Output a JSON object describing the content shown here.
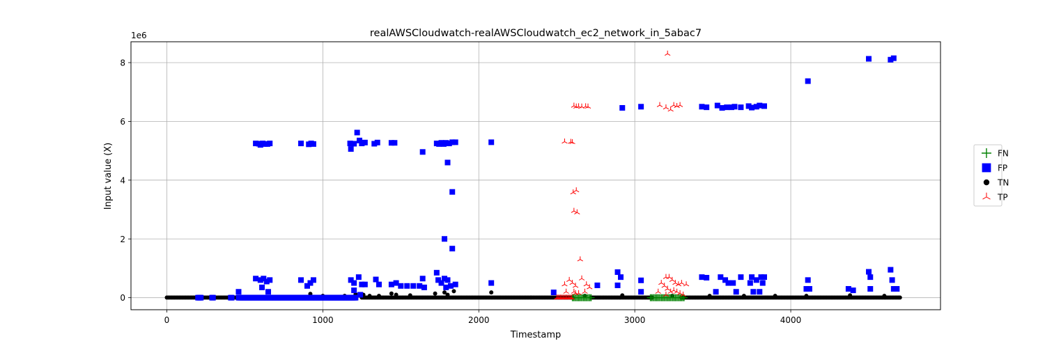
{
  "chart_data": {
    "type": "scatter",
    "title": "realAWSCloudwatch-realAWSCloudwatch_ec2_network_in_5abac7",
    "xlabel": "Timestamp",
    "ylabel": "Input value (X)",
    "y_offset_text": "1e6",
    "xlim": [
      -230,
      4960
    ],
    "ylim": [
      -410000,
      8710000
    ],
    "xticks": [
      0,
      1000,
      2000,
      3000,
      4000
    ],
    "xtick_labels": [
      "0",
      "1000",
      "2000",
      "3000",
      "4000"
    ],
    "yticks": [
      0,
      2000000,
      4000000,
      6000000,
      8000000
    ],
    "ytick_labels": [
      "0",
      "2",
      "4",
      "6",
      "8"
    ],
    "grid": true,
    "legend_position": "right",
    "legend": [
      {
        "label": "FN",
        "marker": "plus",
        "color": "#008000"
      },
      {
        "label": "FP",
        "marker": "square",
        "color": "#0000ff"
      },
      {
        "label": "TN",
        "marker": "circle",
        "color": "#000000"
      },
      {
        "label": "TP",
        "marker": "tri",
        "color": "#ff0000"
      }
    ],
    "series": [
      {
        "name": "TN",
        "marker": "circle",
        "color": "#000000",
        "baseline_ranges": [
          [
            0,
            560
          ],
          [
            740,
            1190
          ],
          [
            1250,
            2600
          ],
          [
            2720,
            3110
          ],
          [
            3300,
            4700
          ]
        ],
        "baseline_value": 5000,
        "points": [
          {
            "x": 920,
            "y": 130000
          },
          {
            "x": 1000,
            "y": 60000
          },
          {
            "x": 1140,
            "y": 60000
          },
          {
            "x": 1210,
            "y": 120000
          },
          {
            "x": 1260,
            "y": 100000
          },
          {
            "x": 1300,
            "y": 60000
          },
          {
            "x": 1360,
            "y": 60000
          },
          {
            "x": 1440,
            "y": 140000
          },
          {
            "x": 1470,
            "y": 100000
          },
          {
            "x": 1560,
            "y": 80000
          },
          {
            "x": 1720,
            "y": 140000
          },
          {
            "x": 1780,
            "y": 180000
          },
          {
            "x": 1800,
            "y": 100000
          },
          {
            "x": 1840,
            "y": 220000
          },
          {
            "x": 2080,
            "y": 180000
          },
          {
            "x": 2680,
            "y": 60000
          },
          {
            "x": 2920,
            "y": 80000
          },
          {
            "x": 3240,
            "y": 60000
          },
          {
            "x": 3480,
            "y": 60000
          },
          {
            "x": 3700,
            "y": 60000
          },
          {
            "x": 3900,
            "y": 60000
          },
          {
            "x": 4100,
            "y": 60000
          },
          {
            "x": 4380,
            "y": 80000
          },
          {
            "x": 4600,
            "y": 60000
          }
        ]
      },
      {
        "name": "FP",
        "marker": "square",
        "color": "#0000ff",
        "baseline_ranges": [
          [
            200,
            220
          ],
          [
            290,
            300
          ],
          [
            410,
            420
          ],
          [
            460,
            1210
          ]
        ],
        "baseline_value": 0,
        "points": [
          {
            "x": 570,
            "y": 5250000
          },
          {
            "x": 590,
            "y": 5240000
          },
          {
            "x": 600,
            "y": 5200000
          },
          {
            "x": 615,
            "y": 5250000
          },
          {
            "x": 630,
            "y": 5230000
          },
          {
            "x": 645,
            "y": 5230000
          },
          {
            "x": 660,
            "y": 5250000
          },
          {
            "x": 860,
            "y": 5250000
          },
          {
            "x": 910,
            "y": 5220000
          },
          {
            "x": 925,
            "y": 5250000
          },
          {
            "x": 940,
            "y": 5230000
          },
          {
            "x": 1175,
            "y": 5250000
          },
          {
            "x": 1180,
            "y": 5060000
          },
          {
            "x": 1200,
            "y": 5240000
          },
          {
            "x": 1220,
            "y": 5620000
          },
          {
            "x": 1235,
            "y": 5350000
          },
          {
            "x": 1250,
            "y": 5250000
          },
          {
            "x": 1270,
            "y": 5280000
          },
          {
            "x": 1330,
            "y": 5240000
          },
          {
            "x": 1350,
            "y": 5280000
          },
          {
            "x": 1440,
            "y": 5270000
          },
          {
            "x": 1460,
            "y": 5270000
          },
          {
            "x": 1640,
            "y": 4960000
          },
          {
            "x": 1730,
            "y": 5250000
          },
          {
            "x": 1745,
            "y": 5230000
          },
          {
            "x": 1760,
            "y": 5270000
          },
          {
            "x": 1775,
            "y": 5230000
          },
          {
            "x": 1790,
            "y": 5270000
          },
          {
            "x": 1810,
            "y": 5250000
          },
          {
            "x": 1830,
            "y": 5290000
          },
          {
            "x": 1850,
            "y": 5290000
          },
          {
            "x": 1800,
            "y": 4600000
          },
          {
            "x": 1830,
            "y": 3600000
          },
          {
            "x": 1780,
            "y": 2000000
          },
          {
            "x": 1830,
            "y": 1670000
          },
          {
            "x": 2080,
            "y": 5290000
          },
          {
            "x": 2920,
            "y": 6460000
          },
          {
            "x": 3040,
            "y": 6500000
          },
          {
            "x": 3430,
            "y": 6500000
          },
          {
            "x": 3460,
            "y": 6480000
          },
          {
            "x": 3530,
            "y": 6540000
          },
          {
            "x": 3560,
            "y": 6460000
          },
          {
            "x": 3590,
            "y": 6480000
          },
          {
            "x": 3620,
            "y": 6480000
          },
          {
            "x": 3640,
            "y": 6500000
          },
          {
            "x": 3680,
            "y": 6480000
          },
          {
            "x": 3730,
            "y": 6520000
          },
          {
            "x": 3750,
            "y": 6470000
          },
          {
            "x": 3780,
            "y": 6500000
          },
          {
            "x": 3800,
            "y": 6540000
          },
          {
            "x": 3830,
            "y": 6520000
          },
          {
            "x": 4110,
            "y": 7370000
          },
          {
            "x": 4500,
            "y": 8130000
          },
          {
            "x": 4640,
            "y": 8100000
          },
          {
            "x": 4660,
            "y": 8150000
          },
          {
            "x": 570,
            "y": 650000
          },
          {
            "x": 600,
            "y": 600000
          },
          {
            "x": 620,
            "y": 650000
          },
          {
            "x": 640,
            "y": 550000
          },
          {
            "x": 660,
            "y": 600000
          },
          {
            "x": 610,
            "y": 350000
          },
          {
            "x": 650,
            "y": 200000
          },
          {
            "x": 860,
            "y": 600000
          },
          {
            "x": 900,
            "y": 400000
          },
          {
            "x": 920,
            "y": 500000
          },
          {
            "x": 940,
            "y": 600000
          },
          {
            "x": 1180,
            "y": 600000
          },
          {
            "x": 1200,
            "y": 500000
          },
          {
            "x": 1230,
            "y": 700000
          },
          {
            "x": 1250,
            "y": 450000
          },
          {
            "x": 1270,
            "y": 450000
          },
          {
            "x": 1340,
            "y": 620000
          },
          {
            "x": 1360,
            "y": 450000
          },
          {
            "x": 1440,
            "y": 450000
          },
          {
            "x": 1470,
            "y": 500000
          },
          {
            "x": 1500,
            "y": 400000
          },
          {
            "x": 1540,
            "y": 400000
          },
          {
            "x": 1580,
            "y": 400000
          },
          {
            "x": 1620,
            "y": 400000
          },
          {
            "x": 1640,
            "y": 650000
          },
          {
            "x": 1730,
            "y": 850000
          },
          {
            "x": 1740,
            "y": 600000
          },
          {
            "x": 1760,
            "y": 500000
          },
          {
            "x": 1780,
            "y": 650000
          },
          {
            "x": 1800,
            "y": 600000
          },
          {
            "x": 1820,
            "y": 400000
          },
          {
            "x": 1850,
            "y": 450000
          },
          {
            "x": 2080,
            "y": 500000
          },
          {
            "x": 1200,
            "y": 250000
          },
          {
            "x": 1240,
            "y": 100000
          },
          {
            "x": 1790,
            "y": 350000
          },
          {
            "x": 1650,
            "y": 350000
          },
          {
            "x": 460,
            "y": 200000
          },
          {
            "x": 2480,
            "y": 180000
          },
          {
            "x": 2760,
            "y": 420000
          },
          {
            "x": 2890,
            "y": 870000
          },
          {
            "x": 2890,
            "y": 420000
          },
          {
            "x": 2910,
            "y": 700000
          },
          {
            "x": 3040,
            "y": 590000
          },
          {
            "x": 3040,
            "y": 200000
          },
          {
            "x": 3430,
            "y": 700000
          },
          {
            "x": 3460,
            "y": 680000
          },
          {
            "x": 3520,
            "y": 200000
          },
          {
            "x": 3550,
            "y": 700000
          },
          {
            "x": 3580,
            "y": 600000
          },
          {
            "x": 3600,
            "y": 500000
          },
          {
            "x": 3630,
            "y": 500000
          },
          {
            "x": 3650,
            "y": 200000
          },
          {
            "x": 3680,
            "y": 700000
          },
          {
            "x": 3740,
            "y": 500000
          },
          {
            "x": 3750,
            "y": 700000
          },
          {
            "x": 3760,
            "y": 200000
          },
          {
            "x": 3780,
            "y": 600000
          },
          {
            "x": 3800,
            "y": 200000
          },
          {
            "x": 3810,
            "y": 700000
          },
          {
            "x": 3820,
            "y": 500000
          },
          {
            "x": 3830,
            "y": 700000
          },
          {
            "x": 4100,
            "y": 300000
          },
          {
            "x": 4110,
            "y": 600000
          },
          {
            "x": 4120,
            "y": 300000
          },
          {
            "x": 4370,
            "y": 300000
          },
          {
            "x": 4400,
            "y": 250000
          },
          {
            "x": 4500,
            "y": 880000
          },
          {
            "x": 4510,
            "y": 700000
          },
          {
            "x": 4510,
            "y": 300000
          },
          {
            "x": 4640,
            "y": 950000
          },
          {
            "x": 4650,
            "y": 600000
          },
          {
            "x": 4660,
            "y": 300000
          },
          {
            "x": 4680,
            "y": 300000
          }
        ]
      },
      {
        "name": "FN",
        "marker": "plus",
        "color": "#008000",
        "baseline_ranges": [
          [
            2600,
            2720
          ],
          [
            3100,
            3320
          ]
        ],
        "baseline_value": 0,
        "points": []
      },
      {
        "name": "TP",
        "marker": "tri",
        "color": "#ff0000",
        "baseline_ranges": [
          [
            2500,
            2600
          ]
        ],
        "baseline_value": 0,
        "points": [
          {
            "x": 2610,
            "y": 6530000
          },
          {
            "x": 2625,
            "y": 6500000
          },
          {
            "x": 2640,
            "y": 6510000
          },
          {
            "x": 2660,
            "y": 6500000
          },
          {
            "x": 2685,
            "y": 6510000
          },
          {
            "x": 2700,
            "y": 6500000
          },
          {
            "x": 2550,
            "y": 5310000
          },
          {
            "x": 2590,
            "y": 5300000
          },
          {
            "x": 2600,
            "y": 5290000
          },
          {
            "x": 2605,
            "y": 3580000
          },
          {
            "x": 2625,
            "y": 3650000
          },
          {
            "x": 2610,
            "y": 2950000
          },
          {
            "x": 2630,
            "y": 2900000
          },
          {
            "x": 2650,
            "y": 1300000
          },
          {
            "x": 2580,
            "y": 600000
          },
          {
            "x": 2600,
            "y": 500000
          },
          {
            "x": 2620,
            "y": 400000
          },
          {
            "x": 2660,
            "y": 650000
          },
          {
            "x": 2690,
            "y": 450000
          },
          {
            "x": 2710,
            "y": 350000
          },
          {
            "x": 2550,
            "y": 450000
          },
          {
            "x": 2560,
            "y": 200000
          },
          {
            "x": 2610,
            "y": 200000
          },
          {
            "x": 2640,
            "y": 150000
          },
          {
            "x": 2680,
            "y": 200000
          },
          {
            "x": 2620,
            "y": 150000
          },
          {
            "x": 3210,
            "y": 8300000
          },
          {
            "x": 3160,
            "y": 6550000
          },
          {
            "x": 3200,
            "y": 6470000
          },
          {
            "x": 3230,
            "y": 6400000
          },
          {
            "x": 3250,
            "y": 6550000
          },
          {
            "x": 3270,
            "y": 6520000
          },
          {
            "x": 3290,
            "y": 6550000
          },
          {
            "x": 3200,
            "y": 700000
          },
          {
            "x": 3220,
            "y": 700000
          },
          {
            "x": 3240,
            "y": 600000
          },
          {
            "x": 3260,
            "y": 500000
          },
          {
            "x": 3280,
            "y": 450000
          },
          {
            "x": 3300,
            "y": 500000
          },
          {
            "x": 3330,
            "y": 450000
          },
          {
            "x": 3170,
            "y": 500000
          },
          {
            "x": 3190,
            "y": 400000
          },
          {
            "x": 3210,
            "y": 300000
          },
          {
            "x": 3230,
            "y": 200000
          },
          {
            "x": 3250,
            "y": 250000
          },
          {
            "x": 3270,
            "y": 200000
          },
          {
            "x": 3150,
            "y": 200000
          },
          {
            "x": 3290,
            "y": 150000
          },
          {
            "x": 3310,
            "y": 100000
          },
          {
            "x": 3200,
            "y": 100000
          }
        ]
      }
    ]
  }
}
